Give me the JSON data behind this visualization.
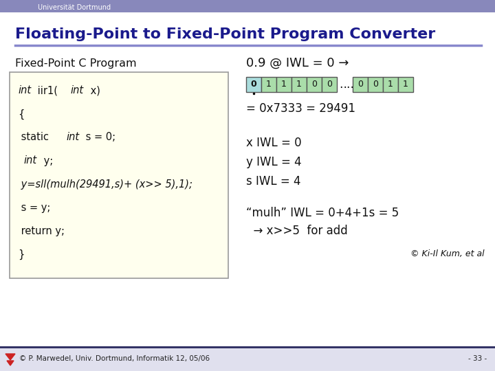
{
  "header_bg": "#8888bb",
  "header_text": "Universität Dortmund",
  "header_text_color": "#ffffff",
  "title": "Floating-Point to Fixed-Point Program Converter",
  "title_color": "#1a1a8c",
  "separator_color": "#8888cc",
  "left_label": "Fixed-Point C Program",
  "code_bg": "#ffffee",
  "code_border": "#999999",
  "right_title": "0.9 @ IWL = 0 →",
  "bits_left": [
    "0",
    "1",
    "1",
    "1",
    "0",
    "0"
  ],
  "bits_right": [
    "0",
    "0",
    "1",
    "1"
  ],
  "bit_cell_bg_first": "#aadddd",
  "bit_cell_bg": "#aaddaa",
  "hex_line": "= 0x7333 = 29491",
  "iwl_lines": [
    "x IWL = 0",
    "y IWL = 4",
    "s IWL = 4"
  ],
  "bottom_text_line1": "“mulh” IWL = 0+4+1s = 5",
  "bottom_text_line2": "  → x>>5  for add",
  "copyright_right": "© Ki-Il Kum, et al",
  "footer_text": "© P. Marwedel, Univ. Dortmund, Informatik 12, 05/06",
  "footer_right": "- 33 -",
  "main_bg": "#ffffff",
  "footer_bar_color": "#333366"
}
